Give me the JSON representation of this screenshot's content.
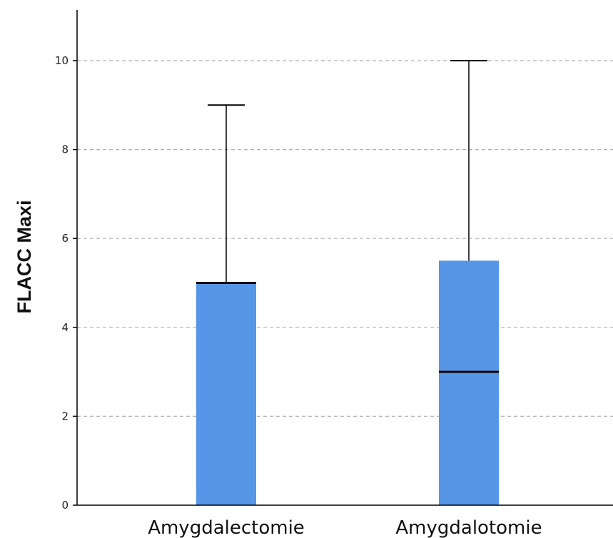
{
  "chart_data": {
    "type": "boxplot",
    "title": "",
    "xlabel": "",
    "ylabel": "FLACC Maxi",
    "ylim": [
      0,
      11
    ],
    "yticks": [
      0,
      2,
      4,
      6,
      8,
      10
    ],
    "categories": [
      "Amygdalectomie",
      "Amygdalotomie"
    ],
    "boxes": [
      {
        "category": "Amygdalectomie",
        "whisker_low": 0,
        "q1": 0,
        "median": 5,
        "q3": 5,
        "whisker_high": 9
      },
      {
        "category": "Amygdalotomie",
        "whisker_low": 0,
        "q1": 0,
        "median": 3,
        "q3": 5.5,
        "whisker_high": 10
      }
    ],
    "grid": true,
    "colors": {
      "box_fill": "#5596e6",
      "median": "#000000",
      "whisker": "#000000",
      "grid": "#b0b0b0",
      "axis": "#000000"
    }
  }
}
